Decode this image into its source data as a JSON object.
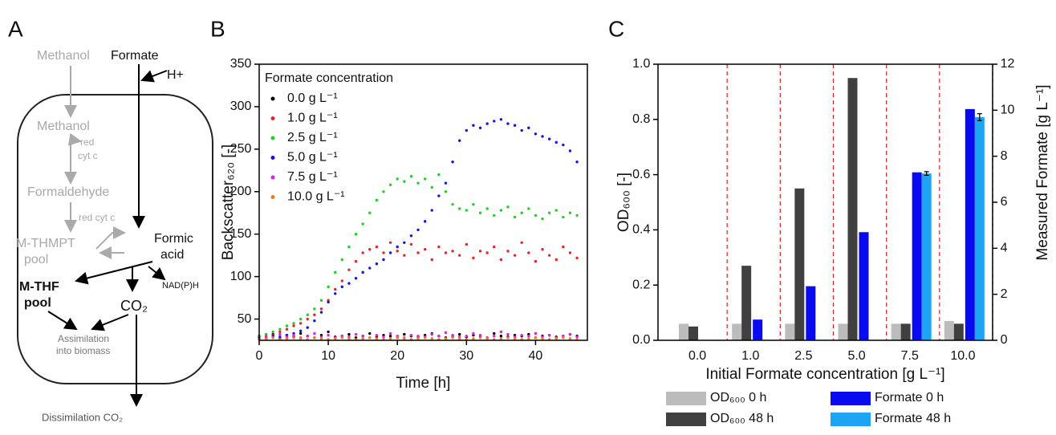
{
  "panel_labels": [
    "A",
    "B",
    "C"
  ],
  "diagram": {
    "texts": [
      "Methanol",
      "Formate",
      "H+",
      "Methanol",
      "red",
      "cyt c",
      "Formaldehyde",
      "red cyt c",
      "Formic",
      "acid",
      "M-THMPT",
      "pool",
      "M-THF",
      "pool",
      "NAD(P)H",
      "CO₂",
      "Assimilation",
      "into biomass",
      "Dissimilation CO₂"
    ]
  },
  "chart_data": [
    {
      "type": "scatter",
      "xlabel": "Time [h]",
      "ylabel": "Backscatter₆₂₀ [-]",
      "legend_title": "Formate concentration",
      "xlim": [
        0,
        47.5
      ],
      "ylim": [
        25,
        350
      ],
      "xticks": [
        0,
        10,
        20,
        30,
        40
      ],
      "yticks": [
        50,
        100,
        150,
        200,
        250,
        300,
        350
      ],
      "x": [
        0,
        1,
        2,
        3,
        4,
        5,
        6,
        7,
        8,
        9,
        10,
        11,
        12,
        13,
        14,
        15,
        16,
        17,
        18,
        19,
        20,
        21,
        22,
        23,
        24,
        25,
        26,
        27,
        28,
        29,
        30,
        31,
        32,
        33,
        34,
        35,
        36,
        37,
        38,
        39,
        40,
        41,
        42,
        43,
        44,
        45,
        46
      ],
      "series": [
        {
          "name": "0.0 g L⁻¹",
          "color": "#000000",
          "values": [
            30,
            28,
            32,
            27,
            31,
            29,
            33,
            30,
            28,
            31,
            35,
            29,
            30,
            32,
            28,
            30,
            33,
            29,
            31,
            30,
            28,
            32,
            30,
            29,
            31,
            33,
            30,
            28,
            30,
            32,
            29,
            31,
            30,
            28,
            33,
            30,
            29,
            31,
            30,
            32,
            28,
            30,
            31,
            29,
            30,
            32,
            30
          ]
        },
        {
          "name": "1.0 g L⁻¹",
          "color": "#e8262a",
          "values": [
            30,
            32,
            31,
            35,
            38,
            42,
            45,
            50,
            55,
            62,
            72,
            85,
            95,
            108,
            118,
            128,
            132,
            135,
            128,
            140,
            130,
            125,
            138,
            128,
            132,
            120,
            135,
            128,
            130,
            125,
            138,
            122,
            130,
            128,
            135,
            120,
            130,
            125,
            140,
            128,
            118,
            132,
            125,
            120,
            135,
            128,
            122
          ]
        },
        {
          "name": "2.5 g L⁻¹",
          "color": "#22d022",
          "values": [
            30,
            32,
            35,
            38,
            42,
            45,
            50,
            55,
            62,
            72,
            88,
            105,
            120,
            135,
            150,
            162,
            175,
            190,
            200,
            208,
            215,
            212,
            218,
            210,
            215,
            205,
            220,
            200,
            185,
            180,
            178,
            185,
            175,
            180,
            172,
            178,
            182,
            170,
            175,
            180,
            172,
            168,
            175,
            178,
            170,
            175,
            172
          ]
        },
        {
          "name": "5.0 g L⁻¹",
          "color": "#1515e0",
          "values": [
            28,
            27,
            30,
            29,
            31,
            33,
            36,
            40,
            48,
            58,
            70,
            80,
            88,
            92,
            98,
            105,
            110,
            115,
            120,
            128,
            135,
            140,
            148,
            155,
            165,
            178,
            195,
            210,
            235,
            260,
            272,
            278,
            275,
            280,
            283,
            285,
            280,
            278,
            272,
            275,
            268,
            265,
            262,
            258,
            255,
            248,
            235
          ]
        },
        {
          "name": "7.5 g L⁻¹",
          "color": "#e020e0",
          "values": [
            27,
            30,
            28,
            32,
            29,
            31,
            28,
            30,
            33,
            29,
            31,
            28,
            30,
            29,
            32,
            30,
            28,
            31,
            29,
            33,
            30,
            28,
            31,
            30,
            29,
            32,
            30,
            34,
            31,
            29,
            30,
            33,
            31,
            28,
            30,
            35,
            32,
            29,
            31,
            30,
            33,
            29,
            31,
            28,
            30,
            32,
            29
          ]
        },
        {
          "name": "10.0 g L⁻¹",
          "color": "#f07820",
          "values": [
            26,
            27,
            28,
            26,
            27,
            28,
            27,
            26,
            28,
            27,
            26,
            27,
            28,
            27,
            26,
            27,
            28,
            27,
            26,
            27,
            28,
            27,
            26,
            27,
            28,
            27,
            26,
            27,
            28,
            27,
            26,
            27,
            28,
            27,
            26,
            27,
            28,
            27,
            26,
            27,
            28,
            27,
            26,
            27,
            28,
            27,
            26
          ]
        }
      ]
    },
    {
      "type": "bar",
      "xlabel": "Initial Formate concentration [g L⁻¹]",
      "ylabel": "OD₆₀₀ [-]",
      "y2label": "Measured Formate [g L⁻¹]",
      "categories": [
        "0.0",
        "1.0",
        "2.5",
        "5.0",
        "7.5",
        "10.0"
      ],
      "ylim": [
        0,
        1.0
      ],
      "yticks": [
        {
          "value": 0,
          "label": "0.0"
        },
        {
          "value": 0.2,
          "label": "0.2"
        },
        {
          "value": 0.4,
          "label": "0.4"
        },
        {
          "value": 0.6,
          "label": "0.6"
        },
        {
          "value": 0.8,
          "label": "0.8"
        },
        {
          "value": 1.0,
          "label": "1.0"
        }
      ],
      "y2lim": [
        0,
        12
      ],
      "y2ticks": [
        0,
        2,
        4,
        6,
        8,
        10,
        12
      ],
      "series": [
        {
          "name": "OD₆₀₀ 0 h",
          "color": "#bcbcbc",
          "values": [
            0.06,
            0.06,
            0.06,
            0.06,
            0.06,
            0.07
          ]
        },
        {
          "name": "OD₆₀₀ 48 h",
          "color": "#404040",
          "values": [
            0.05,
            0.27,
            0.55,
            0.95,
            0.06,
            0.06
          ]
        },
        {
          "name": "Formate 0 h",
          "color": "#0a0af0",
          "axis": "y2",
          "values": [
            null,
            0.9,
            2.35,
            4.7,
            7.3,
            10.05
          ]
        },
        {
          "name": "Formate 48 h",
          "color": "#1ea4f5",
          "axis": "y2",
          "values": [
            null,
            null,
            null,
            null,
            7.25,
            9.7
          ],
          "errors": [
            null,
            null,
            null,
            null,
            0.08,
            0.15
          ]
        }
      ]
    }
  ]
}
